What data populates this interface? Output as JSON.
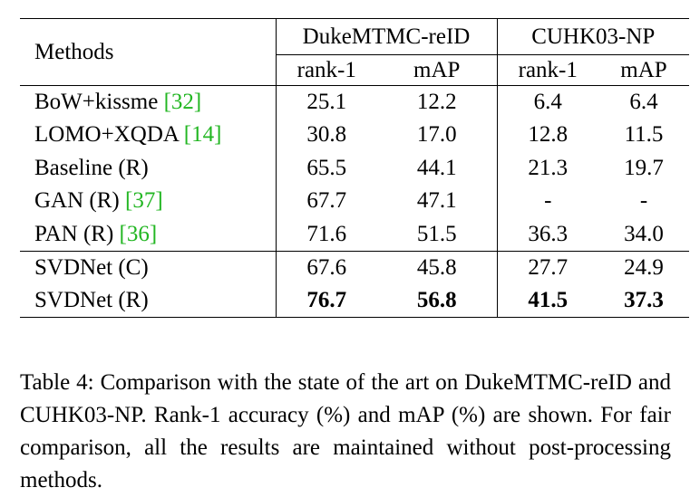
{
  "table": {
    "methods_header": "Methods",
    "groups": [
      "DukeMTMC-reID",
      "CUHK03-NP"
    ],
    "subheaders": [
      "rank-1",
      "mAP",
      "rank-1",
      "mAP"
    ],
    "rows_block1": [
      {
        "name": "BoW+kissme ",
        "cite": "[32]",
        "close": "",
        "values": [
          "25.1",
          "12.2",
          "6.4",
          "6.4"
        ]
      },
      {
        "name": "LOMO+XQDA ",
        "cite": "[14]",
        "close": "",
        "values": [
          "30.8",
          "17.0",
          "12.8",
          "11.5"
        ]
      },
      {
        "name": "Baseline (R)",
        "cite": "",
        "close": "",
        "values": [
          "65.5",
          "44.1",
          "21.3",
          "19.7"
        ]
      },
      {
        "name": "GAN (R) ",
        "cite": "[37]",
        "close": "",
        "values": [
          "67.7",
          "47.1",
          "-",
          "-"
        ]
      },
      {
        "name": "PAN (R) ",
        "cite": "[36]",
        "close": "",
        "values": [
          "71.6",
          "51.5",
          "36.3",
          "34.0"
        ]
      }
    ],
    "rows_block2": [
      {
        "name": "SVDNet (C)",
        "values": [
          "67.6",
          "45.8",
          "27.7",
          "24.9"
        ]
      },
      {
        "name": "SVDNet (R)",
        "values": [
          "76.7",
          "56.8",
          "41.5",
          "37.3"
        ]
      }
    ]
  },
  "caption": "Table 4:  Comparison with the state of the art on DukeMTMC-reID and CUHK03-NP. Rank-1 accuracy (%) and mAP (%) are shown. For fair comparison, all the results are maintained without post-processing methods."
}
